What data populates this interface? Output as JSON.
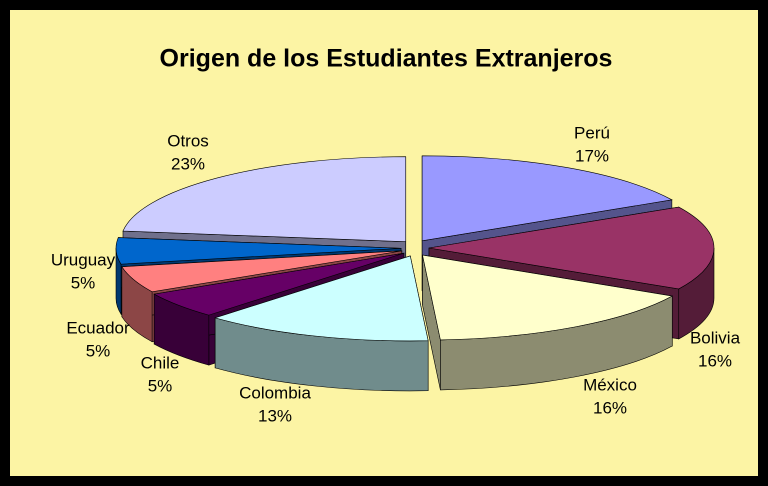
{
  "chart_data": {
    "type": "pie",
    "title": "Origen de los Estudiantes Extranjeros",
    "categories": [
      "Perú",
      "Bolivia",
      "México",
      "Colombia",
      "Chile",
      "Ecuador",
      "Uruguay",
      "Otros"
    ],
    "values": [
      17,
      16,
      16,
      13,
      5,
      5,
      5,
      23
    ],
    "value_labels": [
      "17%",
      "16%",
      "16%",
      "13%",
      "5%",
      "5%",
      "5%",
      "23%"
    ],
    "colors": [
      "#9999ff",
      "#993366",
      "#ffffcc",
      "#ccffff",
      "#660066",
      "#ff8080",
      "#0066cc",
      "#ccccff"
    ]
  }
}
